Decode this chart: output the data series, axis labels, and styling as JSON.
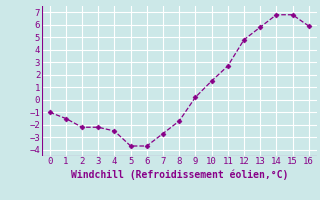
{
  "x": [
    0,
    1,
    2,
    3,
    4,
    5,
    6,
    7,
    8,
    9,
    10,
    11,
    12,
    13,
    14,
    15,
    16
  ],
  "y": [
    -1.0,
    -1.5,
    -2.2,
    -2.2,
    -2.5,
    -3.7,
    -3.7,
    -2.7,
    -1.7,
    0.2,
    1.5,
    2.7,
    4.8,
    5.8,
    6.8,
    6.8,
    5.9
  ],
  "line_color": "#880088",
  "marker": "D",
  "marker_size": 2.5,
  "line_width": 0.9,
  "xlabel": "Windchill (Refroidissement éolien,°C)",
  "xlabel_fontsize": 7,
  "xlim": [
    -0.5,
    16.5
  ],
  "ylim": [
    -4.5,
    7.5
  ],
  "xticks": [
    0,
    1,
    2,
    3,
    4,
    5,
    6,
    7,
    8,
    9,
    10,
    11,
    12,
    13,
    14,
    15,
    16
  ],
  "yticks": [
    -4,
    -3,
    -2,
    -1,
    0,
    1,
    2,
    3,
    4,
    5,
    6,
    7
  ],
  "bg_color": "#cce8e8",
  "grid_color": "#aacccc",
  "tick_fontsize": 6.5,
  "line_style": "--"
}
